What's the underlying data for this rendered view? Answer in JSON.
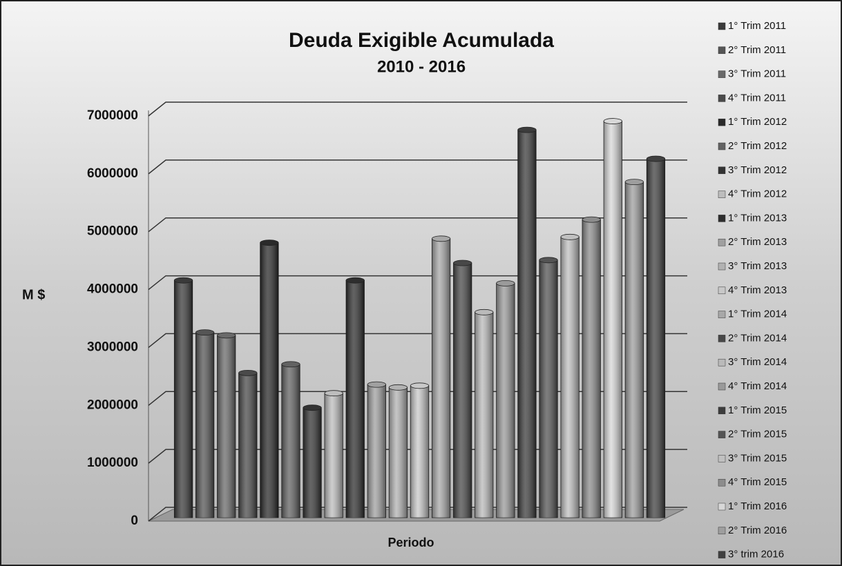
{
  "chart_data": {
    "type": "bar",
    "title": "Deuda Exigible Acumulada",
    "subtitle": "2010 - 2016",
    "x_label": "Periodo",
    "y_label": "M $",
    "ylim": [
      0,
      7000000
    ],
    "yticks": [
      0,
      1000000,
      2000000,
      3000000,
      4000000,
      5000000,
      6000000,
      7000000
    ],
    "grid": true,
    "legend": "right",
    "series": [
      {
        "name": "1° Trim 2011",
        "color": "#3a3a3a",
        "values": [
          4100000
        ]
      },
      {
        "name": "2° Trim 2011",
        "color": "#555555",
        "values": [
          3200000
        ]
      },
      {
        "name": "3° Trim 2011",
        "color": "#6a6a6a",
        "values": [
          3150000
        ]
      },
      {
        "name": "4° Trim 2011",
        "color": "#4a4a4a",
        "values": [
          2500000
        ]
      },
      {
        "name": "1° Trim 2012",
        "color": "#2a2a2a",
        "values": [
          4750000
        ]
      },
      {
        "name": "2° Trim 2012",
        "color": "#626262",
        "values": [
          2650000
        ]
      },
      {
        "name": "3° Trim 2012",
        "color": "#333333",
        "values": [
          1900000
        ]
      },
      {
        "name": "4° Trim 2012",
        "color": "#bdbdbd",
        "values": [
          2150000
        ]
      },
      {
        "name": "1° Trim 2013",
        "color": "#2e2e2e",
        "values": [
          4100000
        ]
      },
      {
        "name": "2° Trim 2013",
        "color": "#a0a0a0",
        "values": [
          2300000
        ]
      },
      {
        "name": "3° Trim 2013",
        "color": "#b2b2b2",
        "values": [
          2250000
        ]
      },
      {
        "name": "4° Trim 2013",
        "color": "#c8c8c8",
        "values": [
          2280000
        ]
      },
      {
        "name": "1° Trim 2014",
        "color": "#a8a8a8",
        "values": [
          4820000
        ]
      },
      {
        "name": "2° Trim 2014",
        "color": "#484848",
        "values": [
          4400000
        ]
      },
      {
        "name": "3° Trim 2014",
        "color": "#bababa",
        "values": [
          3550000
        ]
      },
      {
        "name": "4° Trim 2014",
        "color": "#9a9a9a",
        "values": [
          4050000
        ]
      },
      {
        "name": "1° Trim 2015",
        "color": "#3c3c3c",
        "values": [
          6700000
        ]
      },
      {
        "name": "2° Trim 2015",
        "color": "#545454",
        "values": [
          4450000
        ]
      },
      {
        "name": "3° Trim 2015",
        "color": "#c0c0c0",
        "values": [
          4850000
        ]
      },
      {
        "name": "4° Trim 2015",
        "color": "#8c8c8c",
        "values": [
          5150000
        ]
      },
      {
        "name": "1° Trim 2016",
        "color": "#d8d8d8",
        "values": [
          6850000
        ]
      },
      {
        "name": "2° Trim 2016",
        "color": "#9e9e9e",
        "values": [
          5800000
        ]
      },
      {
        "name": "3° trim 2016",
        "color": "#404040",
        "values": [
          6200000
        ]
      }
    ]
  }
}
